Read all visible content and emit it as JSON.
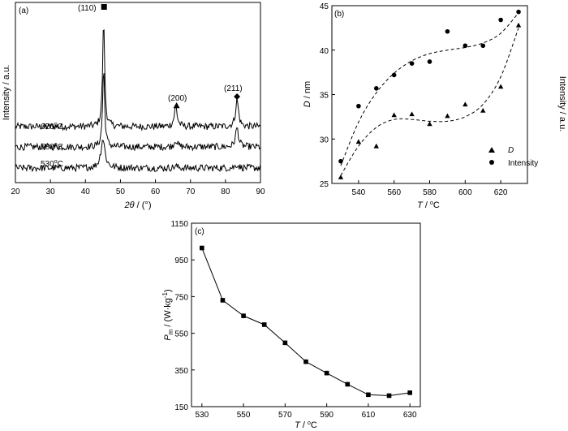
{
  "chart_data": [
    {
      "panel": "(a)",
      "type": "line",
      "xlabel": "2θ / (°)",
      "ylabel": "Intensity / a.u.",
      "xlim": [
        20,
        90
      ],
      "xticks": [
        20,
        30,
        40,
        50,
        60,
        70,
        80,
        90
      ],
      "grid": false,
      "series": [
        {
          "name": "620°C",
          "baseline": 0.75,
          "peaks": [
            [
              45.2,
              6.9,
              0.35
            ],
            [
              65.8,
              1.3,
              0.5
            ],
            [
              83.3,
              1.75,
              0.5
            ]
          ]
        },
        {
          "name": "580°C",
          "baseline": 0.45,
          "peaks": [
            [
              45.2,
              5.1,
              0.35
            ],
            [
              65.8,
              0.45,
              0.5
            ],
            [
              83.3,
              1.25,
              0.5
            ]
          ]
        },
        {
          "name": "530°C",
          "baseline": 0.15,
          "peaks": [
            [
              45.0,
              1.9,
              0.7
            ],
            [
              65.8,
              0.12,
              0.6
            ],
            [
              83.3,
              0.22,
              0.6
            ]
          ]
        }
      ],
      "annotations": [
        {
          "text": "(110)",
          "marker": "square",
          "x": 45.2
        },
        {
          "text": "(200)",
          "marker": "triangle",
          "x": 65.8
        },
        {
          "text": "(211)",
          "marker": "diamond",
          "x": 83.3
        }
      ]
    },
    {
      "panel": "(b)",
      "type": "scatter",
      "x": [
        530,
        540,
        550,
        560,
        570,
        580,
        590,
        600,
        610,
        620,
        630
      ],
      "xlabel": "T / °C",
      "ylabel": "D / nm",
      "ylabel_right": "Intensity / a.u.",
      "xlim": [
        525,
        635
      ],
      "ylim": [
        25,
        45
      ],
      "xticks": [
        540,
        560,
        580,
        600,
        620
      ],
      "yticks": [
        25,
        30,
        35,
        40,
        45
      ],
      "legend": "bottom-right",
      "series": [
        {
          "name": "D",
          "marker": "triangle",
          "values": [
            25.7,
            29.7,
            29.2,
            32.7,
            32.8,
            31.7,
            32.6,
            33.9,
            33.2,
            35.9,
            42.8
          ],
          "trend": [
            25.9,
            29.2,
            31.3,
            32.2,
            32.2,
            32.0,
            32.0,
            32.5,
            33.9,
            37.0,
            42.5
          ]
        },
        {
          "name": "Intensity",
          "marker": "circle",
          "values": [
            27.5,
            33.7,
            35.7,
            37.2,
            38.5,
            38.7,
            42.1,
            40.5,
            40.5,
            43.4,
            44.3
          ],
          "trend": [
            27.0,
            31.9,
            35.2,
            37.4,
            38.8,
            39.6,
            40.0,
            40.3,
            40.8,
            41.9,
            44.2
          ]
        }
      ]
    },
    {
      "panel": "(c)",
      "type": "line",
      "xlabel": "T / °C",
      "ylabel": "Pm / (W·kg-1)",
      "xlim": [
        525,
        635
      ],
      "ylim": [
        150,
        1150
      ],
      "xticks": [
        530,
        550,
        570,
        590,
        610,
        630
      ],
      "yticks": [
        150,
        350,
        550,
        750,
        950,
        1150
      ],
      "series": [
        {
          "name": "",
          "marker": "square",
          "x": [
            530,
            540,
            550,
            560,
            570,
            580,
            590,
            600,
            610,
            620,
            630
          ],
          "values": [
            1015,
            730,
            645,
            597,
            498,
            395,
            333,
            272,
            215,
            210,
            226
          ]
        }
      ]
    }
  ],
  "labels": {
    "a": {
      "panel": "(a)",
      "ylabel": "Intensity / a.u.",
      "xlabel_num": "2θ",
      "xlabel_unit": " / (°)",
      "s620": "620",
      "s580": "580",
      "s530": "530",
      "deg": "o",
      "C": "C",
      "p110": "(110)",
      "p200": "(200)",
      "p211": "(211)"
    },
    "b": {
      "panel": "(b)",
      "ylabel_sym": "D",
      "ylabel_unit": " / nm",
      "ylabel_right": "Intensity / a.u.",
      "xlabel_sym": "T",
      "xlabel_unit": " / ",
      "deg": "o",
      "C": "C",
      "legend_d": "D",
      "legend_int": "Intensity"
    },
    "c": {
      "panel": "(c)",
      "ylabel_sym": "P",
      "ylabel_sub": "m",
      "ylabel_unit": " / (W·kg",
      "ylabel_sup": "-1",
      "ylabel_close": ")",
      "xlabel_sym": "T",
      "xlabel_unit": " / ",
      "deg": "o",
      "C": "C"
    }
  }
}
